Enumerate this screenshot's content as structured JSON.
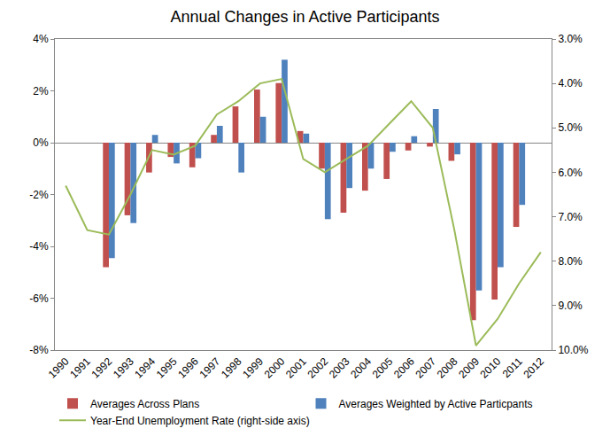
{
  "chart_data": {
    "type": "bar",
    "title": "Annual Changes in Active Participants",
    "categories": [
      "1990",
      "1991",
      "1992",
      "1993",
      "1994",
      "1995",
      "1996",
      "1997",
      "1998",
      "1999",
      "2000",
      "2001",
      "2002",
      "2003",
      "2004",
      "2005",
      "2006",
      "2007",
      "2008",
      "2009",
      "2010",
      "2011",
      "2012"
    ],
    "series": [
      {
        "name": "Averages Across Plans",
        "type": "bar",
        "color": "#c0504d",
        "values": [
          null,
          null,
          -4.8,
          -2.8,
          -1.15,
          -0.55,
          -0.95,
          0.3,
          1.4,
          2.05,
          2.3,
          0.45,
          -1.0,
          -2.7,
          -1.85,
          -1.4,
          -0.3,
          -0.15,
          -0.7,
          -6.85,
          -6.05,
          -3.25,
          null
        ]
      },
      {
        "name": "Averages Weighted by Active Particpants",
        "type": "bar",
        "color": "#4f81bd",
        "values": [
          null,
          null,
          -4.45,
          -3.1,
          0.3,
          -0.8,
          -0.6,
          0.65,
          -1.15,
          1.0,
          3.2,
          0.35,
          -2.95,
          -1.75,
          -1.0,
          -0.35,
          0.25,
          1.3,
          -0.45,
          -5.7,
          -4.8,
          -2.4,
          null
        ]
      },
      {
        "name": "Year-End Unemployment Rate (right-side axis)",
        "type": "line",
        "axis": "y2",
        "color": "#9bbb59",
        "line_style": "solid",
        "values": [
          6.3,
          7.3,
          7.4,
          6.5,
          5.5,
          5.6,
          5.4,
          4.7,
          4.4,
          4.0,
          3.9,
          5.7,
          6.0,
          5.7,
          5.4,
          4.9,
          4.4,
          5.0,
          7.3,
          9.9,
          9.3,
          8.5,
          7.8
        ]
      }
    ],
    "ylim": [
      -8,
      4
    ],
    "yticks": [
      {
        "value": -8,
        "label": "-8%"
      },
      {
        "value": -6,
        "label": "-6%"
      },
      {
        "value": -4,
        "label": "-4%"
      },
      {
        "value": -2,
        "label": "-2%"
      },
      {
        "value": 0,
        "label": "0%"
      },
      {
        "value": 2,
        "label": "2%"
      },
      {
        "value": 4,
        "label": "4%"
      }
    ],
    "y2lim": [
      10,
      3
    ],
    "y2ticks": [
      {
        "value": 3,
        "label": "3.0%"
      },
      {
        "value": 4,
        "label": "4.0%"
      },
      {
        "value": 5,
        "label": "5.0%"
      },
      {
        "value": 6,
        "label": "6.0%"
      },
      {
        "value": 7,
        "label": "7.0%"
      },
      {
        "value": 8,
        "label": "8.0%"
      },
      {
        "value": 9,
        "label": "9.0%"
      },
      {
        "value": 10,
        "label": "10.0%"
      }
    ],
    "grid": false,
    "legend": "bottom"
  }
}
